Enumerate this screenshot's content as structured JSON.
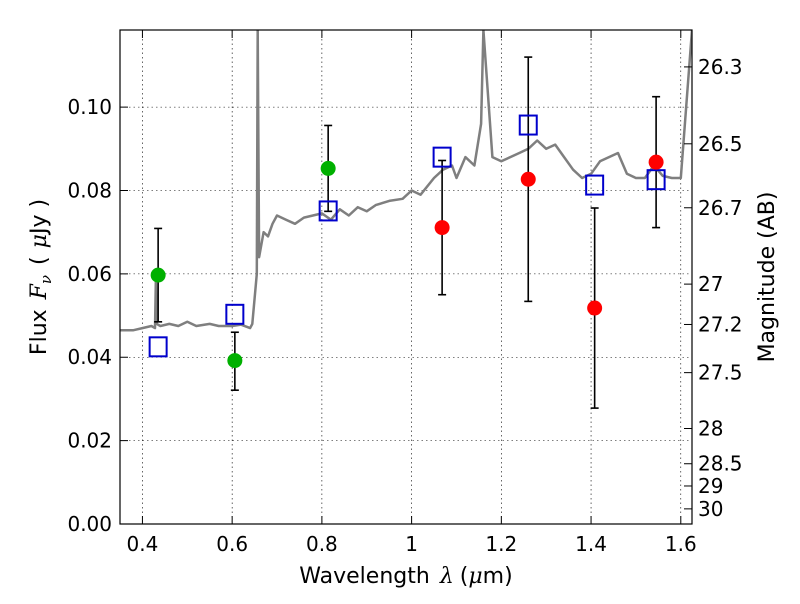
{
  "chart_data": {
    "type": "scatter",
    "xlabel_prefix": "Wavelength",
    "xlabel_var": "λ",
    "xlabel_unit_open": "(",
    "xlabel_unit_mu": "μ",
    "xlabel_unit_rest": "m)",
    "ylabel_prefix": "Flux",
    "ylabel_var": "F",
    "ylabel_sub": "ν",
    "ylabel_unit_open": "(",
    "ylabel_unit_mu": "μ",
    "ylabel_unit_rest": "Jy )",
    "y2label": "Magnitude (AB)",
    "xlim": [
      0.35,
      1.625
    ],
    "ylim": [
      0.0,
      0.1185
    ],
    "x_ticks": [
      0.4,
      0.6,
      0.8,
      1.0,
      1.2,
      1.4,
      1.6
    ],
    "x_tick_labels": [
      "0.4",
      "0.6",
      "0.8",
      "1",
      "1.2",
      "1.4",
      "1.6"
    ],
    "y_ticks": [
      0.0,
      0.02,
      0.04,
      0.06,
      0.08,
      0.1
    ],
    "y_tick_labels": [
      "0.00",
      "0.02",
      "0.04",
      "0.06",
      "0.08",
      "0.10"
    ],
    "mag_ticks": [
      {
        "label": "26.3",
        "mag": 26.3
      },
      {
        "label": "26.5",
        "mag": 26.5
      },
      {
        "label": "26.7",
        "mag": 26.7
      },
      {
        "label": "27",
        "mag": 27.0
      },
      {
        "label": "27.2",
        "mag": 27.2
      },
      {
        "label": "27.5",
        "mag": 27.5
      },
      {
        "label": "28",
        "mag": 28.0
      },
      {
        "label": "28.5",
        "mag": 28.5
      },
      {
        "label": "29",
        "mag": 29.0
      },
      {
        "label": "30",
        "mag": 30.0
      }
    ],
    "grid": true,
    "series": [
      {
        "name": "detections",
        "marker": "circle",
        "color": "#00b000",
        "points": [
          {
            "x": 0.435,
            "y": 0.0597,
            "err_lo": 0.0112,
            "err_hi": 0.0112
          },
          {
            "x": 0.606,
            "y": 0.0392,
            "err_lo": 0.0071,
            "err_hi": 0.0068
          },
          {
            "x": 0.814,
            "y": 0.0853,
            "err_lo": 0.0103,
            "err_hi": 0.0103
          }
        ]
      },
      {
        "name": "detections_red",
        "marker": "circle",
        "color": "#ff0000",
        "points": [
          {
            "x": 1.068,
            "y": 0.0711,
            "err_lo": 0.0161,
            "err_hi": 0.0161
          },
          {
            "x": 1.26,
            "y": 0.0827,
            "err_lo": 0.0293,
            "err_hi": 0.0293
          },
          {
            "x": 1.408,
            "y": 0.0518,
            "err_lo": 0.024,
            "err_hi": 0.024
          },
          {
            "x": 1.545,
            "y": 0.0868,
            "err_lo": 0.0157,
            "err_hi": 0.0157
          }
        ]
      },
      {
        "name": "model_photometry",
        "marker": "square",
        "color": "#0000cc",
        "points": [
          {
            "x": 0.435,
            "y": 0.0425
          },
          {
            "x": 0.606,
            "y": 0.0503
          },
          {
            "x": 0.814,
            "y": 0.0751
          },
          {
            "x": 1.068,
            "y": 0.088
          },
          {
            "x": 1.26,
            "y": 0.0957
          },
          {
            "x": 1.408,
            "y": 0.0813
          },
          {
            "x": 1.545,
            "y": 0.0826
          }
        ]
      }
    ],
    "spectrum": {
      "name": "model_spectrum",
      "color": "#7f7f7f",
      "x": [
        0.35,
        0.38,
        0.4,
        0.42,
        0.428,
        0.43,
        0.432,
        0.44,
        0.46,
        0.48,
        0.5,
        0.52,
        0.55,
        0.57,
        0.6,
        0.62,
        0.64,
        0.645,
        0.655,
        0.657,
        0.66,
        0.67,
        0.68,
        0.69,
        0.7,
        0.72,
        0.74,
        0.76,
        0.78,
        0.8,
        0.82,
        0.84,
        0.86,
        0.88,
        0.9,
        0.92,
        0.95,
        0.98,
        1.0,
        1.02,
        1.05,
        1.07,
        1.09,
        1.1,
        1.12,
        1.14,
        1.155,
        1.16,
        1.18,
        1.2,
        1.22,
        1.24,
        1.26,
        1.28,
        1.3,
        1.32,
        1.34,
        1.36,
        1.38,
        1.4,
        1.42,
        1.44,
        1.46,
        1.48,
        1.5,
        1.52,
        1.54,
        1.56,
        1.58,
        1.6,
        1.625
      ],
      "y": [
        0.0465,
        0.0465,
        0.047,
        0.0475,
        0.047,
        0.059,
        0.048,
        0.0475,
        0.048,
        0.0475,
        0.0485,
        0.0475,
        0.048,
        0.0475,
        0.0475,
        0.0478,
        0.047,
        0.048,
        0.06,
        0.1185,
        0.064,
        0.07,
        0.069,
        0.072,
        0.074,
        0.073,
        0.072,
        0.0735,
        0.074,
        0.0745,
        0.073,
        0.0755,
        0.074,
        0.076,
        0.075,
        0.0765,
        0.0775,
        0.078,
        0.08,
        0.079,
        0.083,
        0.085,
        0.086,
        0.083,
        0.088,
        0.086,
        0.096,
        0.1185,
        0.088,
        0.087,
        0.088,
        0.089,
        0.09,
        0.092,
        0.09,
        0.091,
        0.088,
        0.085,
        0.083,
        0.084,
        0.087,
        0.088,
        0.089,
        0.084,
        0.083,
        0.083,
        0.086,
        0.0835,
        0.083,
        0.083,
        0.1185
      ]
    }
  }
}
